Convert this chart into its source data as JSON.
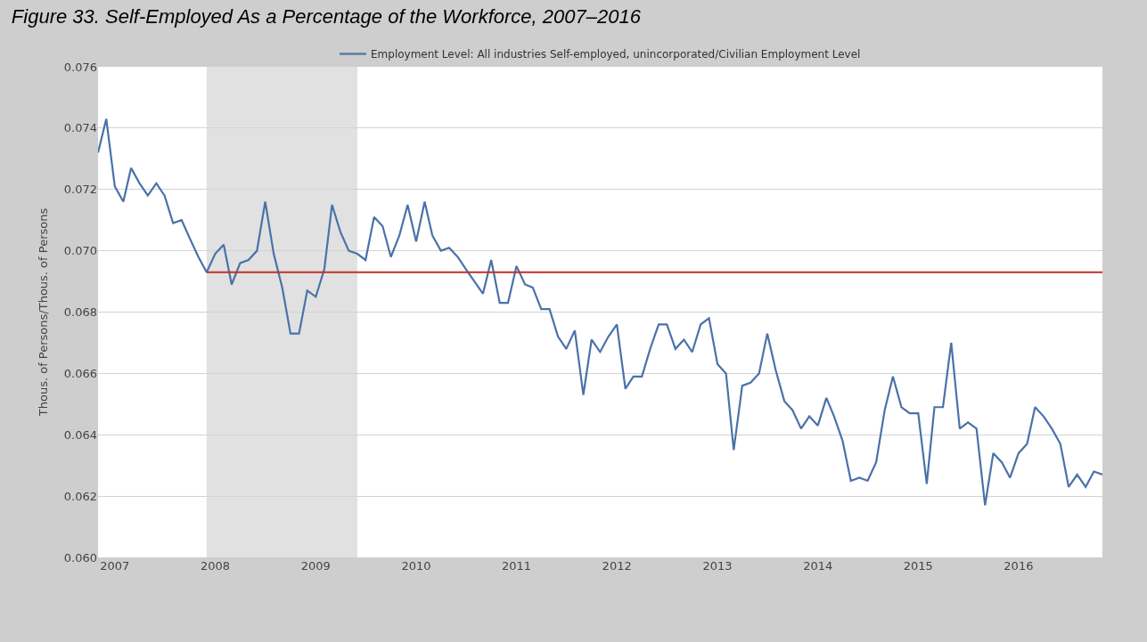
{
  "chart_data": {
    "type": "line",
    "title": "Figure 33. Self-Employed As a Percentage of the Workforce, 2007–2016",
    "ylabel": "Thous. of Persons/Thous. of Persons",
    "x": [
      "2006-11",
      "2006-12",
      "2007-01",
      "2007-02",
      "2007-03",
      "2007-04",
      "2007-05",
      "2007-06",
      "2007-07",
      "2007-08",
      "2007-09",
      "2007-10",
      "2007-11",
      "2007-12",
      "2008-01",
      "2008-02",
      "2008-03",
      "2008-04",
      "2008-05",
      "2008-06",
      "2008-07",
      "2008-08",
      "2008-09",
      "2008-10",
      "2008-11",
      "2008-12",
      "2009-01",
      "2009-02",
      "2009-03",
      "2009-04",
      "2009-05",
      "2009-06",
      "2009-07",
      "2009-08",
      "2009-09",
      "2009-10",
      "2009-11",
      "2009-12",
      "2010-01",
      "2010-02",
      "2010-03",
      "2010-04",
      "2010-05",
      "2010-06",
      "2010-07",
      "2010-08",
      "2010-09",
      "2010-10",
      "2010-11",
      "2010-12",
      "2011-01",
      "2011-02",
      "2011-03",
      "2011-04",
      "2011-05",
      "2011-06",
      "2011-07",
      "2011-08",
      "2011-09",
      "2011-10",
      "2011-11",
      "2011-12",
      "2012-01",
      "2012-02",
      "2012-03",
      "2012-04",
      "2012-05",
      "2012-06",
      "2012-07",
      "2012-08",
      "2012-09",
      "2012-10",
      "2012-11",
      "2012-12",
      "2013-01",
      "2013-02",
      "2013-03",
      "2013-04",
      "2013-05",
      "2013-06",
      "2013-07",
      "2013-08",
      "2013-09",
      "2013-10",
      "2013-11",
      "2013-12",
      "2014-01",
      "2014-02",
      "2014-03",
      "2014-04",
      "2014-05",
      "2014-06",
      "2014-07",
      "2014-08",
      "2014-09",
      "2014-10",
      "2014-11",
      "2014-12",
      "2015-01",
      "2015-02",
      "2015-03",
      "2015-04",
      "2015-05",
      "2015-06",
      "2015-07",
      "2015-08",
      "2015-09",
      "2015-10",
      "2015-11",
      "2015-12",
      "2016-01",
      "2016-02",
      "2016-03",
      "2016-04",
      "2016-05",
      "2016-06",
      "2016-07",
      "2016-08",
      "2016-09",
      "2016-10",
      "2016-11"
    ],
    "series": [
      {
        "name": "Employment Level: All industries Self-employed, unincorporated/Civilian Employment Level",
        "color": "#4a72a8",
        "values": [
          0.0732,
          0.0743,
          0.0721,
          0.0716,
          0.0727,
          0.0722,
          0.0718,
          0.0722,
          0.0718,
          0.0709,
          0.071,
          0.0704,
          0.0698,
          0.0693,
          0.0699,
          0.0702,
          0.0689,
          0.0696,
          0.0697,
          0.07,
          0.0716,
          0.0699,
          0.0688,
          0.0673,
          0.0673,
          0.0687,
          0.0685,
          0.0694,
          0.0715,
          0.0706,
          0.07,
          0.0699,
          0.0697,
          0.0711,
          0.0708,
          0.0698,
          0.0705,
          0.0715,
          0.0703,
          0.0716,
          0.0705,
          0.07,
          0.0701,
          0.0698,
          0.0694,
          0.069,
          0.0686,
          0.0697,
          0.0683,
          0.0683,
          0.0695,
          0.0689,
          0.0688,
          0.0681,
          0.0681,
          0.0672,
          0.0668,
          0.0674,
          0.0653,
          0.0671,
          0.0667,
          0.0672,
          0.0676,
          0.0655,
          0.0659,
          0.0659,
          0.0668,
          0.0676,
          0.0676,
          0.0668,
          0.0671,
          0.0667,
          0.0676,
          0.0678,
          0.0663,
          0.066,
          0.0635,
          0.0656,
          0.0657,
          0.066,
          0.0673,
          0.0661,
          0.0651,
          0.0648,
          0.0642,
          0.0646,
          0.0643,
          0.0652,
          0.0646,
          0.0638,
          0.0625,
          0.0626,
          0.0625,
          0.0631,
          0.0648,
          0.0659,
          0.0649,
          0.0647,
          0.0647,
          0.0624,
          0.0649,
          0.0649,
          0.067,
          0.0642,
          0.0644,
          0.0642,
          0.0617,
          0.0634,
          0.0631,
          0.0626,
          0.0634,
          0.0637,
          0.0649,
          0.0646,
          0.0642,
          0.0637,
          0.0623,
          0.0627,
          0.0623,
          0.0628,
          0.0627
        ]
      },
      {
        "type": "line",
        "color": "#c0302a",
        "x": [
          "2007-12",
          "2016-11"
        ],
        "values": [
          0.0693,
          0.0693
        ]
      }
    ],
    "bands": [
      {
        "axis": "x",
        "from": "2007-12",
        "to": "2009-06",
        "color": "#e1e1e1"
      }
    ],
    "xlim": [
      "2006-11",
      "2016-11"
    ],
    "xticks": [
      "2007",
      "2008",
      "2009",
      "2010",
      "2011",
      "2012",
      "2013",
      "2014",
      "2015",
      "2016"
    ],
    "ylim": [
      0.06,
      0.076
    ],
    "yticks": [
      {
        "value": 0.06,
        "label": "0.060"
      },
      0.062,
      0.064,
      0.066,
      0.068,
      {
        "value": 0.07,
        "label": "0.070"
      },
      0.072,
      0.074,
      0.076
    ],
    "grid": "y",
    "legend": "top"
  }
}
